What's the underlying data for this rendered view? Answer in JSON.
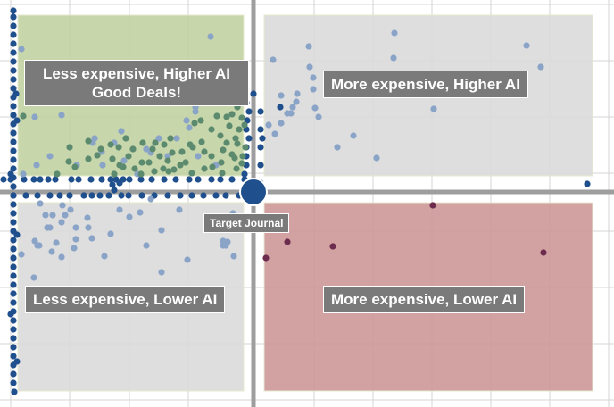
{
  "chart_data": {
    "type": "scatter",
    "title": "",
    "xlabel": "",
    "ylabel": "",
    "grid": true,
    "target": {
      "label": "Target Journal",
      "x": 0,
      "y": 0
    },
    "quadrants": [
      {
        "id": "top-left",
        "label": "Less expensive, Higher AI\nGood Deals!",
        "color": "#c3d3a4"
      },
      {
        "id": "top-right",
        "label": "More expensive, Higher AI",
        "color": "#dcdcdc"
      },
      {
        "id": "bottom-left",
        "label": "Less expensive, Lower AI",
        "color": "#dcdcdc"
      },
      {
        "id": "bottom-right",
        "label": "More expensive, Lower AI",
        "color": "#cf9a9a"
      }
    ],
    "colors": {
      "axis": "#9e9e9e",
      "grid": "#d4d4d4",
      "edge_points": "#1f4f8c",
      "points": "#8aa4c8",
      "good_deal_points": "#5b8a6e",
      "lower_ai_points": "#6b2c4e",
      "target": "#1f4f8c"
    },
    "series": [
      {
        "group": "edge",
        "points": [
          [
            -269,
            -196
          ],
          [
            -269,
            -186
          ],
          [
            -269,
            -176
          ],
          [
            -269,
            -166
          ],
          [
            -269,
            -156
          ],
          [
            -269,
            -146
          ],
          [
            -269,
            -136
          ],
          [
            -269,
            -126
          ],
          [
            -269,
            -116
          ],
          [
            -269,
            -106
          ],
          [
            -269,
            -96
          ],
          [
            -269,
            -86
          ],
          [
            -269,
            -76
          ],
          [
            -269,
            -66
          ],
          [
            -269,
            -56
          ],
          [
            -269,
            -46
          ],
          [
            -269,
            -36
          ],
          [
            -269,
            -26
          ],
          [
            -269,
            -16
          ],
          [
            -269,
            -6
          ],
          [
            -269,
            4
          ],
          [
            -269,
            14
          ],
          [
            -269,
            24
          ],
          [
            -269,
            34
          ],
          [
            -269,
            44
          ],
          [
            -269,
            54
          ],
          [
            -269,
            64
          ],
          [
            -269,
            74
          ],
          [
            -269,
            84
          ],
          [
            -269,
            94
          ],
          [
            -269,
            104
          ],
          [
            -269,
            114
          ],
          [
            -269,
            124
          ],
          [
            -269,
            134
          ],
          [
            -269,
            144
          ],
          [
            -269,
            154
          ],
          [
            -269,
            164
          ],
          [
            -269,
            174
          ],
          [
            -269,
            184
          ],
          [
            -269,
            194
          ],
          [
            -269,
            204
          ],
          [
            -269,
            214
          ],
          [
            -269,
            -203
          ],
          [
            -272,
            -20
          ],
          [
            -265,
            48
          ],
          [
            -272,
            137
          ],
          [
            -265,
            190
          ],
          [
            -268,
            224
          ],
          [
            -265,
            -80
          ],
          [
            -266,
            -110
          ],
          [
            -280,
            -14
          ],
          [
            -272,
            -14
          ],
          [
            -257,
            -14
          ],
          [
            -246,
            -14
          ],
          [
            -239,
            -14
          ],
          [
            -230,
            -14
          ],
          [
            -222,
            -14
          ],
          [
            -204,
            -14
          ],
          [
            -196,
            -14
          ],
          [
            -182,
            -14
          ],
          [
            -170,
            -14
          ],
          [
            -160,
            -14
          ],
          [
            -154,
            -14
          ],
          [
            -146,
            -14
          ],
          [
            -139,
            -14
          ],
          [
            -126,
            -14
          ],
          [
            -114,
            -14
          ],
          [
            -100,
            -14
          ],
          [
            -87,
            -14
          ],
          [
            -72,
            -14
          ],
          [
            -62,
            -14
          ],
          [
            -47,
            -14
          ],
          [
            -37,
            -14
          ],
          [
            -24,
            -14
          ],
          [
            -10,
            -14
          ],
          [
            -269,
            4
          ],
          [
            -255,
            4
          ],
          [
            -242,
            4
          ],
          [
            -228,
            4
          ],
          [
            -217,
            4
          ],
          [
            -206,
            4
          ],
          [
            -190,
            4
          ],
          [
            -181,
            4
          ],
          [
            -172,
            4
          ],
          [
            -162,
            4
          ],
          [
            -148,
            4
          ],
          [
            -140,
            4
          ],
          [
            -125,
            4
          ],
          [
            -111,
            4
          ],
          [
            -96,
            4
          ],
          [
            -82,
            4
          ],
          [
            -69,
            4
          ],
          [
            -56,
            4
          ],
          [
            -42,
            4
          ],
          [
            -31,
            4
          ],
          [
            -16,
            4
          ],
          [
            -150,
            -10
          ],
          [
            -158,
            -8
          ],
          [
            -156,
            -2
          ],
          [
            -7,
            -80
          ],
          [
            -5,
            -60
          ],
          [
            -8,
            -40
          ],
          [
            -10,
            -20
          ],
          [
            -8,
            -10
          ],
          [
            -8,
            -100
          ],
          [
            -8,
            -70
          ],
          [
            -8,
            -50
          ],
          [
            -8,
            -30
          ],
          [
            -5,
            -90
          ],
          [
            0,
            -110
          ],
          [
            8,
            -90
          ],
          [
            8,
            -70
          ],
          [
            8,
            -50
          ],
          [
            8,
            -30
          ],
          [
            8,
            -10
          ],
          [
            10,
            -60
          ],
          [
            30,
            -95
          ],
          [
            374,
            -9
          ]
        ]
      },
      {
        "group": "other",
        "points": [
          [
            -48,
            -174
          ],
          [
            -245,
            -84
          ],
          [
            -260,
            -160
          ],
          [
            -220,
            -100
          ],
          [
            -215,
            -86
          ],
          [
            -228,
            -40
          ],
          [
            -258,
            -20
          ],
          [
            -243,
            -30
          ],
          [
            -198,
            -30
          ],
          [
            -169,
            -30
          ],
          [
            -178,
            -60
          ],
          [
            -65,
            -90
          ],
          [
            -65,
            -95
          ],
          [
            -72,
            -72
          ],
          [
            -75,
            -80
          ],
          [
            -86,
            -60
          ],
          [
            -106,
            -60
          ],
          [
            -115,
            -44
          ],
          [
            -130,
            -20
          ],
          [
            -145,
            -35
          ],
          [
            -180,
            -55
          ],
          [
            -120,
            -48
          ],
          [
            -148,
            -68
          ],
          [
            -156,
            -55
          ],
          [
            -170,
            -45
          ],
          [
            -96,
            -40
          ],
          [
            -62,
            -40
          ],
          [
            -42,
            -30
          ],
          [
            -239,
            13
          ],
          [
            -233,
            26
          ],
          [
            -225,
            26
          ],
          [
            -211,
            26
          ],
          [
            -205,
            20
          ],
          [
            -215,
            34
          ],
          [
            -228,
            40
          ],
          [
            -221,
            57
          ],
          [
            -245,
            55
          ],
          [
            -242,
            60
          ],
          [
            -226,
            67
          ],
          [
            -199,
            40
          ],
          [
            -185,
            40
          ],
          [
            -160,
            47
          ],
          [
            -150,
            20
          ],
          [
            -139,
            28
          ],
          [
            -127,
            23
          ],
          [
            -115,
            8
          ],
          [
            -83,
            20
          ],
          [
            -103,
            43
          ],
          [
            -120,
            60
          ],
          [
            -181,
            52
          ],
          [
            -186,
            29
          ],
          [
            -199,
            53
          ],
          [
            -201,
            63
          ],
          [
            -214,
            15
          ],
          [
            -215,
            73
          ],
          [
            -246,
            96
          ],
          [
            -240,
            60
          ],
          [
            -231,
            40
          ],
          [
            -260,
            70
          ],
          [
            -167,
            72
          ],
          [
            -247,
            115
          ],
          [
            -103,
            90
          ],
          [
            -34,
            55
          ],
          [
            -74,
            76
          ],
          [
            -31,
            60
          ],
          [
            -34,
            60
          ],
          [
            -29,
            56
          ],
          [
            -22,
            72
          ],
          [
            -23,
            24
          ],
          [
            22,
            -148
          ],
          [
            31,
            -108
          ],
          [
            38,
            -88
          ],
          [
            48,
            -101
          ],
          [
            62,
            -163
          ],
          [
            63,
            -140
          ],
          [
            67,
            -128
          ],
          [
            67,
            -115
          ],
          [
            69,
            -94
          ],
          [
            73,
            -84
          ],
          [
            49,
            -110
          ],
          [
            24,
            -65
          ],
          [
            17,
            -75
          ],
          [
            44,
            -95
          ],
          [
            94,
            -50
          ],
          [
            112,
            -63
          ],
          [
            138,
            -38
          ],
          [
            157,
            -150
          ],
          [
            158,
            -178
          ],
          [
            202,
            -93
          ],
          [
            306,
            -164
          ],
          [
            322,
            -140
          ],
          [
            42,
            -88
          ],
          [
            31,
            -77
          ]
        ]
      },
      {
        "group": "good_deal",
        "points": [
          [
            -258,
            -85
          ],
          [
            -206,
            -50
          ],
          [
            -185,
            -57
          ],
          [
            -160,
            -53
          ],
          [
            -151,
            -50
          ],
          [
            -135,
            -48
          ],
          [
            -124,
            -55
          ],
          [
            -110,
            -55
          ],
          [
            -100,
            -53
          ],
          [
            -93,
            -60
          ],
          [
            -68,
            -50
          ],
          [
            -55,
            -45
          ],
          [
            -47,
            -40
          ],
          [
            -36,
            -33
          ],
          [
            -21,
            -38
          ],
          [
            -18,
            -54
          ],
          [
            -207,
            -34
          ],
          [
            -200,
            -28
          ],
          [
            -185,
            -37
          ],
          [
            -175,
            -41
          ],
          [
            -158,
            -37
          ],
          [
            -146,
            -28
          ],
          [
            -133,
            -26
          ],
          [
            -117,
            -33
          ],
          [
            -101,
            -26
          ],
          [
            -96,
            -35
          ],
          [
            -91,
            -44
          ],
          [
            -82,
            -30
          ],
          [
            -76,
            -33
          ],
          [
            -69,
            -21
          ],
          [
            -55,
            -26
          ],
          [
            -46,
            -28
          ],
          [
            -35,
            -21
          ],
          [
            -19,
            -26
          ],
          [
            -13,
            -32
          ],
          [
            -143,
            -60
          ],
          [
            -126,
            -20
          ],
          [
            -156,
            -20
          ],
          [
            -111,
            -23
          ],
          [
            -95,
            -23
          ],
          [
            -80,
            -45
          ],
          [
            -66,
            -77
          ],
          [
            -59,
            -80
          ],
          [
            -47,
            -70
          ],
          [
            -41,
            -85
          ],
          [
            -27,
            -74
          ],
          [
            -24,
            -87
          ],
          [
            -18,
            -95
          ],
          [
            -16,
            -70
          ],
          [
            -13,
            -83
          ],
          [
            -30,
            -84
          ],
          [
            -37,
            -63
          ],
          [
            -185,
            -110
          ],
          [
            -171,
            -48
          ],
          [
            -220,
            -20
          ],
          [
            -150,
            -30
          ],
          [
            -105,
            -40
          ],
          [
            -89,
            -25
          ],
          [
            -71,
            -53
          ],
          [
            -58,
            -56
          ],
          [
            -34,
            -47
          ],
          [
            -140,
            -40
          ],
          [
            -113,
            -48
          ],
          [
            -125,
            -33
          ],
          [
            -10,
            -75
          ],
          [
            -20,
            -60
          ],
          [
            -30,
            -55
          ],
          [
            -9,
            -50
          ],
          [
            -12,
            -40
          ],
          [
            -24,
            -42
          ]
        ]
      },
      {
        "group": "lower_ai",
        "points": [
          [
            38,
            56
          ],
          [
            89,
            61
          ],
          [
            14,
            74
          ],
          [
            201,
            15
          ],
          [
            325,
            68
          ]
        ]
      }
    ]
  }
}
